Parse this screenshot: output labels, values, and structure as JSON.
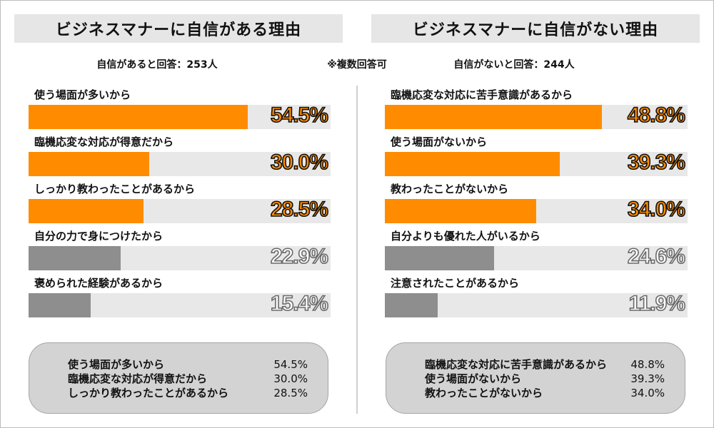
{
  "note": "※複数回答可",
  "chart_data": [
    {
      "type": "bar",
      "orientation": "horizontal",
      "title": "ビジネスマナーに自信がある理由",
      "subtitle": "自信があると回答：253人",
      "categories": [
        "使う場面が多いから",
        "臨機応変な対応が得意だから",
        "しっかり教わったことがあるから",
        "自分の力で身につけたから",
        "褒められた経験があるから"
      ],
      "values": [
        54.5,
        30.0,
        28.5,
        22.9,
        15.4
      ],
      "value_labels": [
        "54.5%",
        "30.0%",
        "28.5%",
        "22.9%",
        "15.4%"
      ],
      "highlighted": [
        true,
        true,
        true,
        false,
        false
      ],
      "xlim": [
        0,
        75
      ],
      "summary": [
        {
          "label": "使う場面が多いから",
          "value": "54.5%"
        },
        {
          "label": "臨機応変な対応が得意だから",
          "value": "30.0%"
        },
        {
          "label": "しっかり教わったことがあるから",
          "value": "28.5%"
        }
      ]
    },
    {
      "type": "bar",
      "orientation": "horizontal",
      "title": "ビジネスマナーに自信がない理由",
      "subtitle": "自信がないと回答：244人",
      "categories": [
        "臨機応変な対応に苦手意識があるから",
        "使う場面がないから",
        "教わったことがないから",
        "自分よりも優れた人がいるから",
        "注意されたことがあるから"
      ],
      "values": [
        48.8,
        39.3,
        34.0,
        24.6,
        11.9
      ],
      "value_labels": [
        "48.8%",
        "39.3%",
        "34.0%",
        "24.6%",
        "11.9%"
      ],
      "highlighted": [
        true,
        true,
        true,
        false,
        false
      ],
      "xlim": [
        0,
        68
      ],
      "summary": [
        {
          "label": "臨機応変な対応に苦手意識があるから",
          "value": "48.8%"
        },
        {
          "label": "使う場面がないから",
          "value": "39.3%"
        },
        {
          "label": "教わったことがないから",
          "value": "34.0%"
        }
      ]
    }
  ],
  "colors": {
    "highlight": "#ff8c00",
    "muted": "#8e8e8e",
    "track": "#e8e8e8",
    "title_band": "#e6e6e6",
    "summary_bg": "#d3d3d3"
  }
}
